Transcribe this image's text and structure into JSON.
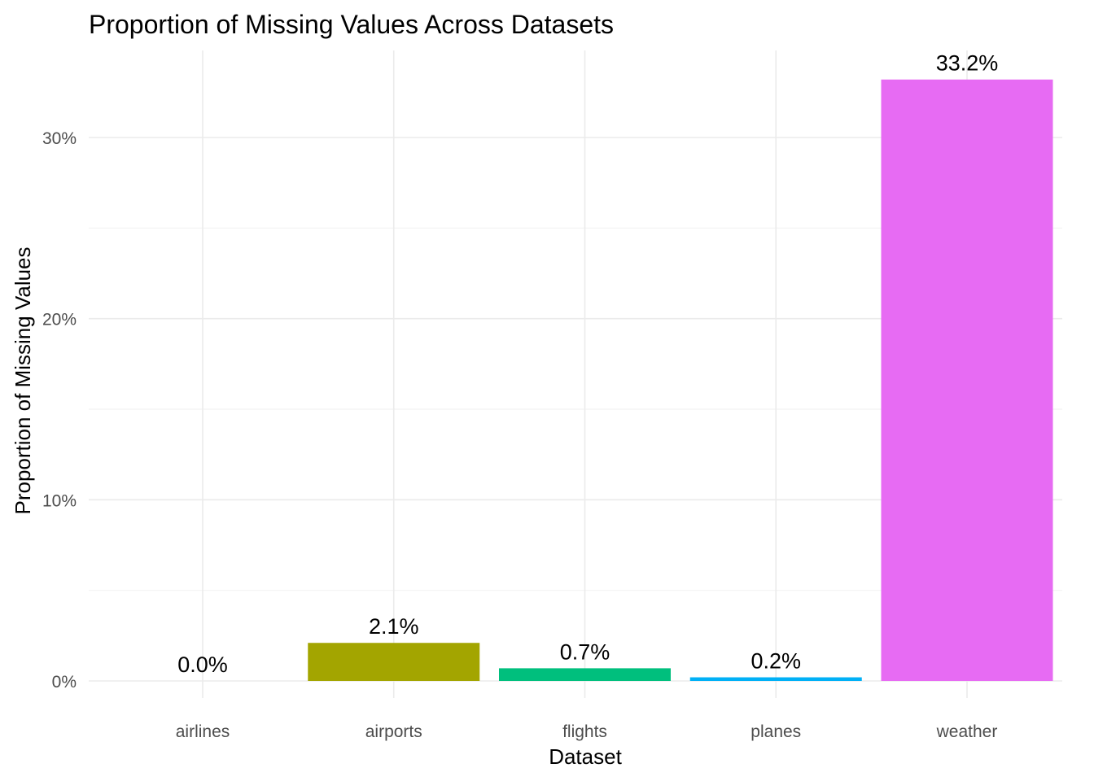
{
  "chart_data": {
    "type": "bar",
    "title": "Proportion of Missing Values Across Datasets",
    "xlabel": "Dataset",
    "ylabel": "Proportion of Missing Values",
    "categories": [
      "airlines",
      "airports",
      "flights",
      "planes",
      "weather"
    ],
    "values": [
      0.0,
      2.1,
      0.7,
      0.2,
      33.2
    ],
    "data_labels": [
      "0.0%",
      "2.1%",
      "0.7%",
      "0.2%",
      "33.2%"
    ],
    "colors": [
      "#F8766D",
      "#A3A500",
      "#00BF7D",
      "#00B0F6",
      "#E76BF3"
    ],
    "ylim": [
      0,
      35
    ],
    "y_ticks": [
      0,
      10,
      20,
      30
    ],
    "y_tick_labels": [
      "0%",
      "10%",
      "20%",
      "30%"
    ],
    "y_minor_ticks": [
      5,
      15,
      25
    ],
    "grid": true,
    "legend": "none"
  }
}
